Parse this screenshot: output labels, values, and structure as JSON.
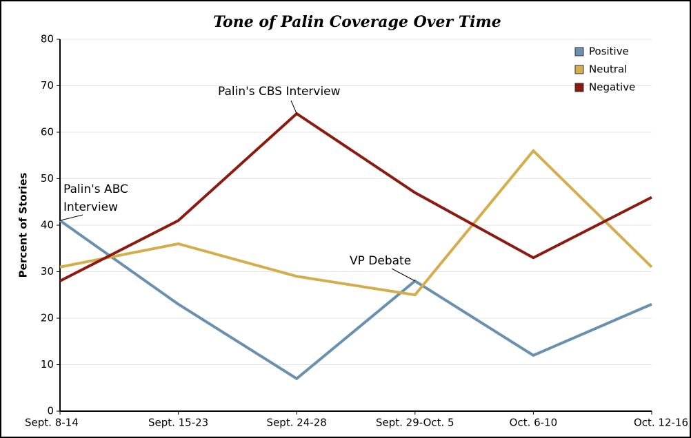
{
  "chart_data": {
    "type": "line",
    "title": "Tone of Palin Coverage Over Time",
    "y_label": "Percent of Stories",
    "categories": [
      "Sept. 8-14",
      "Sept. 15-23",
      "Sept. 24-28",
      "Sept. 29-Oct. 5",
      "Oct. 6-10",
      "Oct. 12-16"
    ],
    "series": [
      {
        "name": "Positive",
        "color": "#6a90b0",
        "values": [
          41,
          23,
          7,
          28,
          12,
          23
        ]
      },
      {
        "name": "Neutral",
        "color": "#d4ad4c",
        "values": [
          31,
          36,
          29,
          25,
          56,
          31
        ]
      },
      {
        "name": "Negative",
        "color": "#8b1a10",
        "values": [
          28,
          41,
          64,
          47,
          33,
          46
        ]
      }
    ],
    "ylim": [
      0,
      80
    ],
    "yticks": [
      0,
      10,
      20,
      30,
      40,
      50,
      60,
      70,
      80
    ],
    "grid": true,
    "legend": "top-right",
    "annotations": [
      {
        "lines": [
          "Palin's ABC",
          "Interview"
        ]
      },
      {
        "lines": [
          "Palin's CBS Interview"
        ]
      },
      {
        "lines": [
          "VP Debate"
        ]
      }
    ]
  }
}
